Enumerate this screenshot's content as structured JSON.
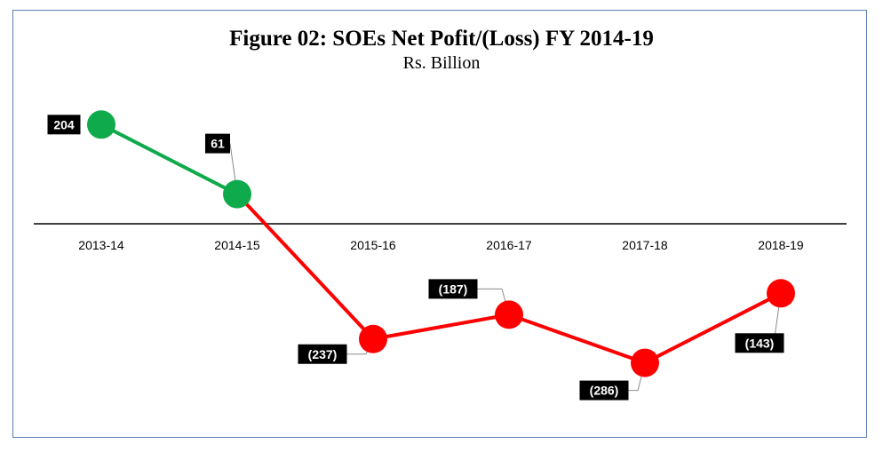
{
  "chart_data": {
    "type": "line",
    "title": "Figure 02: SOEs Net Pofit/(Loss) FY 2014-19",
    "subtitle": "Rs. Billion",
    "categories": [
      "2013-14",
      "2014-15",
      "2015-16",
      "2016-17",
      "2017-18",
      "2018-19"
    ],
    "values": [
      204,
      61,
      -237,
      -187,
      -286,
      -143
    ],
    "data_labels": [
      "204",
      "61",
      "(237)",
      "(187)",
      "(286)",
      "(143)"
    ],
    "ylim": [
      -350,
      250
    ],
    "grid": false,
    "legend": "none",
    "colors": {
      "profit": "#0faa4b",
      "loss": "#ff0000",
      "axis": "#404040",
      "label_bg": "#000000"
    }
  }
}
